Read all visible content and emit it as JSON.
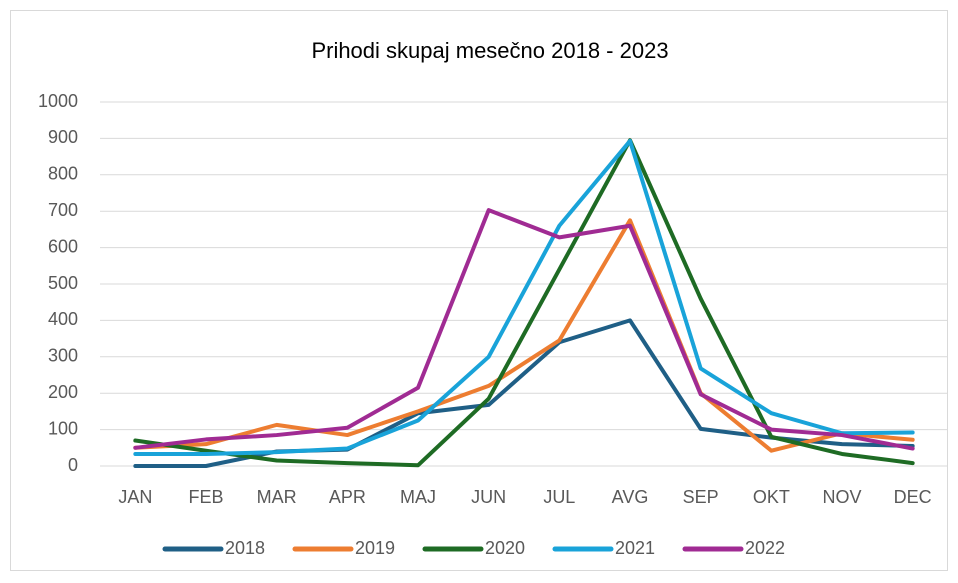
{
  "chart_data": {
    "type": "line",
    "title": "Prihodi skupaj mesečno 2018 - 2023",
    "categories": [
      "JAN",
      "FEB",
      "MAR",
      "APR",
      "MAJ",
      "JUN",
      "JUL",
      "AVG",
      "SEP",
      "OKT",
      "NOV",
      "DEC"
    ],
    "series": [
      {
        "name": "2018",
        "color": "#1f5f86",
        "values": [
          0,
          0,
          40,
          45,
          145,
          168,
          340,
          400,
          102,
          78,
          60,
          55
        ]
      },
      {
        "name": "2019",
        "color": "#ed7d31",
        "values": [
          50,
          60,
          113,
          85,
          150,
          220,
          345,
          675,
          200,
          42,
          90,
          72
        ]
      },
      {
        "name": "2020",
        "color": "#1e6b24",
        "values": [
          70,
          42,
          15,
          8,
          2,
          185,
          540,
          895,
          460,
          80,
          33,
          8
        ]
      },
      {
        "name": "2021",
        "color": "#19a3d9",
        "values": [
          33,
          33,
          38,
          48,
          125,
          300,
          660,
          893,
          268,
          145,
          90,
          92
        ]
      },
      {
        "name": "2022",
        "color": "#a02b93",
        "values": [
          50,
          73,
          85,
          105,
          215,
          703,
          628,
          660,
          197,
          100,
          85,
          48
        ]
      }
    ],
    "ylim": [
      0,
      1000
    ],
    "yticks": [
      0,
      100,
      200,
      300,
      400,
      500,
      600,
      700,
      800,
      900,
      1000
    ],
    "grid": true,
    "legend": "bottom"
  }
}
